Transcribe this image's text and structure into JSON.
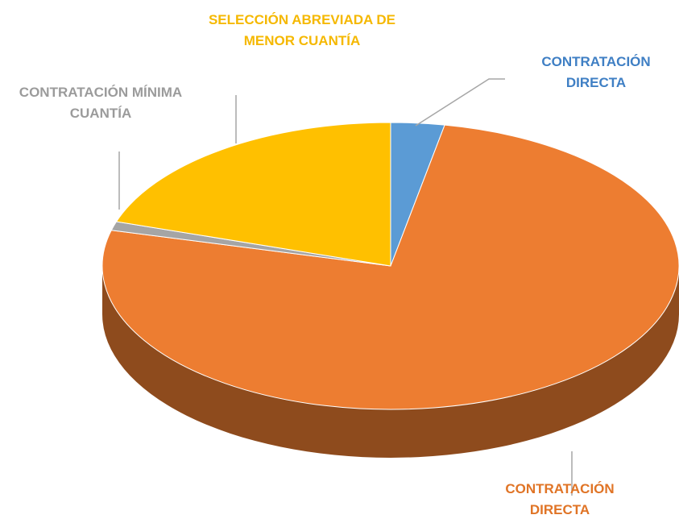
{
  "chart_data": {
    "type": "pie3d",
    "categories": [
      "CONTRATACIÓN DIRECTA",
      "CONTRATACIÓN DIRECTA",
      "CONTRATACIÓN MÍNIMA CUANTÍA",
      "SELECCIÓN ABREVIADA DE MENOR CUANTÍA"
    ],
    "values": [
      3,
      76,
      1,
      20
    ],
    "colors": [
      "#5b9bd5",
      "#ed7d31",
      "#a5a5a5",
      "#ffc000"
    ],
    "label_colors": [
      "#3f7fc4",
      "#e07426",
      "#9b9b9b",
      "#f5b800"
    ]
  }
}
